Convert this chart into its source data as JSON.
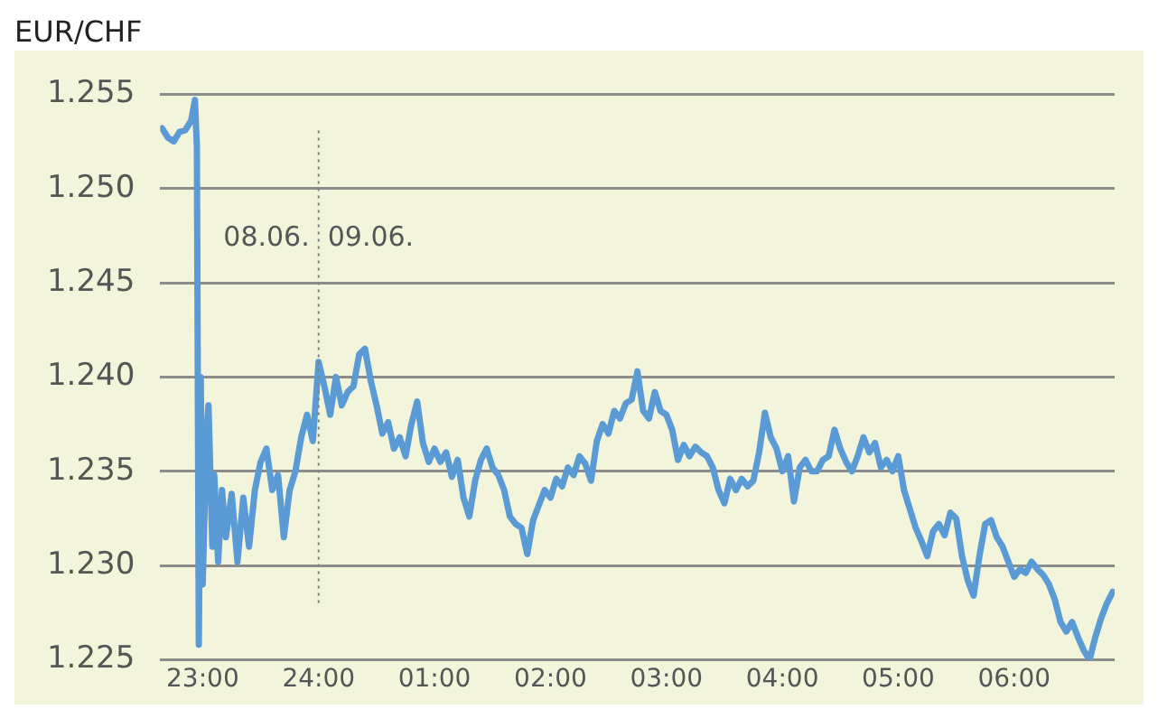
{
  "chart_data": {
    "type": "line",
    "title": "EUR/CHF",
    "x": [
      "--06-08T22:39",
      "--06-08T22:42",
      "--06-08T22:45",
      "--06-08T22:48",
      "--06-08T22:51",
      "--06-08T22:54",
      "--06-08T22:56",
      "--06-08T22:57",
      "--06-08T22:58",
      "--06-08T22:59",
      "--06-08T23:00",
      "--06-08T23:02",
      "--06-08T23:03",
      "--06-08T23:05",
      "--06-08T23:06",
      "--06-08T23:08",
      "--06-08T23:10",
      "--06-08T23:12",
      "--06-08T23:15",
      "--06-08T23:18",
      "--06-08T23:21",
      "--06-08T23:24",
      "--06-08T23:27",
      "--06-08T23:30",
      "--06-08T23:33",
      "--06-08T23:36",
      "--06-08T23:39",
      "--06-08T23:42",
      "--06-08T23:45",
      "--06-08T23:48",
      "--06-08T23:51",
      "--06-08T23:54",
      "--06-08T23:57",
      "--06-09T00:00",
      "--06-09T00:03",
      "--06-09T00:06",
      "--06-09T00:09",
      "--06-09T00:12",
      "--06-09T00:15",
      "--06-09T00:18",
      "--06-09T00:21",
      "--06-09T00:24",
      "--06-09T00:27",
      "--06-09T00:30",
      "--06-09T00:33",
      "--06-09T00:36",
      "--06-09T00:39",
      "--06-09T00:42",
      "--06-09T00:45",
      "--06-09T00:48",
      "--06-09T00:51",
      "--06-09T00:54",
      "--06-09T00:57",
      "--06-09T01:00",
      "--06-09T01:03",
      "--06-09T01:06",
      "--06-09T01:09",
      "--06-09T01:12",
      "--06-09T01:15",
      "--06-09T01:18",
      "--06-09T01:21",
      "--06-09T01:24",
      "--06-09T01:27",
      "--06-09T01:30",
      "--06-09T01:33",
      "--06-09T01:36",
      "--06-09T01:39",
      "--06-09T01:42",
      "--06-09T01:45",
      "--06-09T01:48",
      "--06-09T01:51",
      "--06-09T01:54",
      "--06-09T01:57",
      "--06-09T02:00",
      "--06-09T02:03",
      "--06-09T02:06",
      "--06-09T02:09",
      "--06-09T02:12",
      "--06-09T02:15",
      "--06-09T02:18",
      "--06-09T02:21",
      "--06-09T02:24",
      "--06-09T02:27",
      "--06-09T02:30",
      "--06-09T02:33",
      "--06-09T02:36",
      "--06-09T02:39",
      "--06-09T02:42",
      "--06-09T02:45",
      "--06-09T02:48",
      "--06-09T02:51",
      "--06-09T02:54",
      "--06-09T02:57",
      "--06-09T03:00",
      "--06-09T03:03",
      "--06-09T03:06",
      "--06-09T03:09",
      "--06-09T03:12",
      "--06-09T03:15",
      "--06-09T03:18",
      "--06-09T03:21",
      "--06-09T03:24",
      "--06-09T03:27",
      "--06-09T03:30",
      "--06-09T03:33",
      "--06-09T03:36",
      "--06-09T03:39",
      "--06-09T03:42",
      "--06-09T03:45",
      "--06-09T03:48",
      "--06-09T03:51",
      "--06-09T03:54",
      "--06-09T03:57",
      "--06-09T04:00",
      "--06-09T04:03",
      "--06-09T04:06",
      "--06-09T04:09",
      "--06-09T04:12",
      "--06-09T04:15",
      "--06-09T04:18",
      "--06-09T04:21",
      "--06-09T04:24",
      "--06-09T04:27",
      "--06-09T04:30",
      "--06-09T04:33",
      "--06-09T04:36",
      "--06-09T04:39",
      "--06-09T04:42",
      "--06-09T04:45",
      "--06-09T04:48",
      "--06-09T04:51",
      "--06-09T04:54",
      "--06-09T04:57",
      "--06-09T05:00",
      "--06-09T05:03",
      "--06-09T05:06",
      "--06-09T05:09",
      "--06-09T05:12",
      "--06-09T05:15",
      "--06-09T05:18",
      "--06-09T05:21",
      "--06-09T05:24",
      "--06-09T05:27",
      "--06-09T05:30",
      "--06-09T05:33",
      "--06-09T05:36",
      "--06-09T05:39",
      "--06-09T05:42",
      "--06-09T05:45",
      "--06-09T05:48",
      "--06-09T05:51",
      "--06-09T05:54",
      "--06-09T05:57",
      "--06-09T06:00",
      "--06-09T06:03",
      "--06-09T06:06",
      "--06-09T06:09",
      "--06-09T06:12",
      "--06-09T06:15",
      "--06-09T06:18",
      "--06-09T06:21",
      "--06-09T06:24",
      "--06-09T06:27",
      "--06-09T06:30",
      "--06-09T06:33",
      "--06-09T06:36",
      "--06-09T06:39",
      "--06-09T06:42",
      "--06-09T06:45",
      "--06-09T06:48",
      "--06-09T06:51"
    ],
    "series": [
      {
        "color": "#5b9bd5",
        "values": [
          1.2532,
          1.2527,
          1.2525,
          1.253,
          1.2531,
          1.2536,
          1.2547,
          1.2522,
          1.2258,
          1.24,
          1.229,
          1.237,
          1.2385,
          1.231,
          1.2348,
          1.2302,
          1.234,
          1.2315,
          1.2338,
          1.2302,
          1.2336,
          1.231,
          1.234,
          1.2355,
          1.2362,
          1.234,
          1.2348,
          1.2315,
          1.234,
          1.235,
          1.2368,
          1.238,
          1.2366,
          1.2408,
          1.2395,
          1.238,
          1.24,
          1.2385,
          1.2392,
          1.2395,
          1.2412,
          1.2415,
          1.2398,
          1.2385,
          1.237,
          1.2376,
          1.2362,
          1.2368,
          1.2358,
          1.2375,
          1.2387,
          1.2365,
          1.2355,
          1.2362,
          1.2355,
          1.236,
          1.2347,
          1.2356,
          1.2336,
          1.2326,
          1.2345,
          1.2356,
          1.2362,
          1.2352,
          1.2348,
          1.234,
          1.2326,
          1.2322,
          1.232,
          1.2306,
          1.2324,
          1.2332,
          1.234,
          1.2336,
          1.2346,
          1.2342,
          1.2352,
          1.2348,
          1.2358,
          1.2354,
          1.2345,
          1.2366,
          1.2375,
          1.237,
          1.2382,
          1.2378,
          1.2386,
          1.2388,
          1.2403,
          1.2382,
          1.2378,
          1.2392,
          1.2382,
          1.238,
          1.2372,
          1.2356,
          1.2364,
          1.2358,
          1.2363,
          1.236,
          1.2358,
          1.2352,
          1.234,
          1.2333,
          1.2346,
          1.234,
          1.2346,
          1.2342,
          1.2345,
          1.236,
          1.2381,
          1.2368,
          1.2362,
          1.235,
          1.2358,
          1.2334,
          1.2352,
          1.2356,
          1.235,
          1.235,
          1.2356,
          1.2358,
          1.2372,
          1.2362,
          1.2355,
          1.235,
          1.2358,
          1.2368,
          1.236,
          1.2365,
          1.2352,
          1.2356,
          1.235,
          1.2358,
          1.234,
          1.233,
          1.232,
          1.2313,
          1.2305,
          1.2318,
          1.2322,
          1.2316,
          1.2328,
          1.2325,
          1.2305,
          1.2292,
          1.2284,
          1.2305,
          1.2322,
          1.2324,
          1.2315,
          1.231,
          1.2302,
          1.2294,
          1.2298,
          1.2296,
          1.2302,
          1.2298,
          1.2295,
          1.229,
          1.2282,
          1.227,
          1.2265,
          1.227,
          1.2262,
          1.2255,
          1.225,
          1.2262,
          1.2272,
          1.228,
          1.2286
        ]
      }
    ],
    "xlim": [
      "--06-08T22:38",
      "--06-09T06:52"
    ],
    "xticks": [
      {
        "value": "--06-08T23:00",
        "label": "23:00"
      },
      {
        "value": "--06-09T00:00",
        "label": "24:00"
      },
      {
        "value": "--06-09T01:00",
        "label": "01:00"
      },
      {
        "value": "--06-09T02:00",
        "label": "02:00"
      },
      {
        "value": "--06-09T03:00",
        "label": "03:00"
      },
      {
        "value": "--06-09T04:00",
        "label": "04:00"
      },
      {
        "value": "--06-09T05:00",
        "label": "05:00"
      },
      {
        "value": "--06-09T06:00",
        "label": "06:00"
      }
    ],
    "ylim": [
      1.225,
      1.255
    ],
    "yticks": [
      1.225,
      {
        "value": 1.23,
        "label": "1.230"
      },
      1.235,
      {
        "value": 1.24,
        "label": "1.240"
      },
      1.245,
      {
        "value": 1.25,
        "label": "1.250"
      },
      1.255
    ],
    "grid": "y",
    "legend": false,
    "marker": "none",
    "line_style": "solid",
    "ref_lines": [
      {
        "axis": "x",
        "value": "--06-09T00:00",
        "color": "#808080",
        "line_style": "dotted"
      }
    ],
    "annotations": [
      "08.06.",
      "09.06."
    ]
  }
}
